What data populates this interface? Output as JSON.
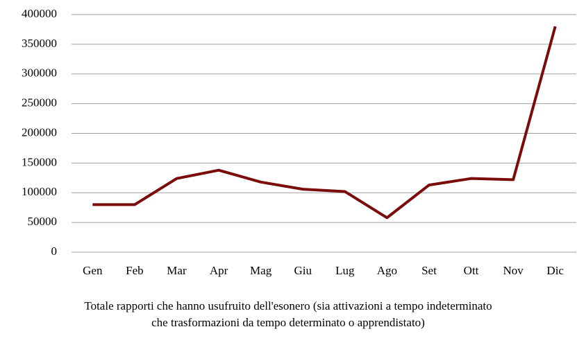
{
  "chart_data": {
    "type": "line",
    "categories": [
      "Gen",
      "Feb",
      "Mar",
      "Apr",
      "Mag",
      "Giu",
      "Lug",
      "Ago",
      "Set",
      "Ott",
      "Nov",
      "Dic"
    ],
    "series": [
      {
        "name": "Totale rapporti che hanno usufruito dell'esonero (sia attivazioni  a tempo indeterminato  che trasformazioni  da tempo determinato  o apprendistato)",
        "color": "#7b0c0c",
        "values": [
          80000,
          80000,
          124000,
          138000,
          118000,
          106000,
          102000,
          58000,
          113000,
          124000,
          122000,
          380000
        ]
      }
    ],
    "ylim": [
      0,
      400000
    ],
    "yticks": [
      0,
      50000,
      100000,
      150000,
      200000,
      250000,
      300000,
      350000,
      400000
    ],
    "grid": true,
    "legend": "bottom"
  }
}
